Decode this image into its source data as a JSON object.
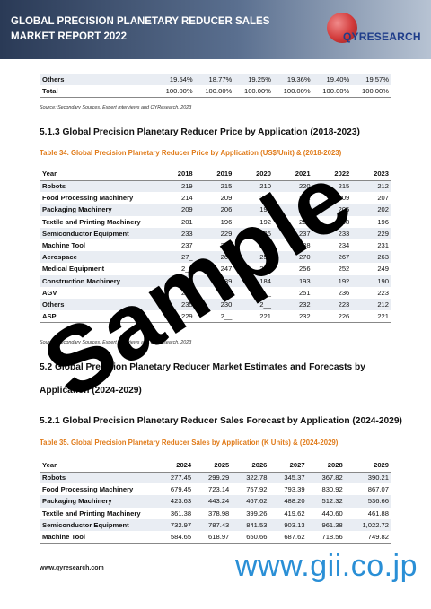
{
  "header": {
    "title": "GLOBAL PRECISION PLANETARY REDUCER SALES MARKET REPORT 2022",
    "logo_text": "QYRESEARCH"
  },
  "top_table": {
    "rows": [
      {
        "label": "Others",
        "values": [
          "19.54%",
          "18.77%",
          "19.25%",
          "19.36%",
          "19.40%",
          "19.57%"
        ]
      },
      {
        "label": "Total",
        "values": [
          "100.00%",
          "100.00%",
          "100.00%",
          "100.00%",
          "100.00%",
          "100.00%"
        ]
      }
    ]
  },
  "source_text": "Source: Secondary Sources, Expert Interviews and QYResearch, 2023",
  "section_513": "5.1.3  Global Precision Planetary Reducer Price by Application (2018-2023)",
  "table34": {
    "caption": "Table 34.   Global Precision Planetary Reducer Price by Application (US$/Unit) & (2018-2023)",
    "header_label": "Year",
    "years": [
      "2018",
      "2019",
      "2020",
      "2021",
      "2022",
      "2023"
    ],
    "rows": [
      {
        "label": "Robots",
        "values": [
          "219",
          "215",
          "210",
          "220",
          "215",
          "212"
        ]
      },
      {
        "label": "Food Processing Machinery",
        "values": [
          "214",
          "209",
          "201",
          "212",
          "209",
          "207"
        ]
      },
      {
        "label": "Packaging Machinery",
        "values": [
          "209",
          "206",
          "199",
          "208",
          "205",
          "202"
        ]
      },
      {
        "label": "Textile and Printing Machinery",
        "values": [
          "201",
          "196",
          "192",
          "201",
          "198",
          "196"
        ]
      },
      {
        "label": "Semiconductor Equipment",
        "values": [
          "233",
          "229",
          "226",
          "237",
          "233",
          "229"
        ]
      },
      {
        "label": "Machine Tool",
        "values": [
          "237",
          "232",
          "226",
          "238",
          "234",
          "231"
        ]
      },
      {
        "label": "Aerospace",
        "values": [
          "27_",
          "260",
          "257",
          "270",
          "267",
          "263"
        ]
      },
      {
        "label": "Medical Equipment",
        "values": [
          "2__",
          "247",
          "244",
          "256",
          "252",
          "249"
        ]
      },
      {
        "label": "Construction Machinery",
        "values": [
          "194",
          "189",
          "184",
          "193",
          "192",
          "190"
        ]
      },
      {
        "label": "AGV",
        "values": [
          "255",
          "250",
          "2__",
          "251",
          "236",
          "223"
        ]
      },
      {
        "label": "Others",
        "values": [
          "235",
          "230",
          "2__",
          "232",
          "223",
          "212"
        ]
      },
      {
        "label": "ASP",
        "values": [
          "229",
          "2__",
          "221",
          "232",
          "226",
          "221"
        ]
      }
    ]
  },
  "section_52_line1": "5.2  Global Precision Planetary Reducer Market Estimates and Forecasts by",
  "section_52_line2": "Application (2024-2029)",
  "section_521": "5.2.1  Global Precision Planetary Reducer Sales Forecast by Application (2024-2029)",
  "table35": {
    "caption": "Table 35.   Global Precision Planetary Reducer Sales by Application (K Units) & (2024-2029)",
    "header_label": "Year",
    "years": [
      "2024",
      "2025",
      "2026",
      "2027",
      "2028",
      "2029"
    ],
    "rows": [
      {
        "label": "Robots",
        "values": [
          "277.45",
          "299.29",
          "322.78",
          "345.37",
          "367.82",
          "390.21"
        ]
      },
      {
        "label": "Food Processing Machinery",
        "values": [
          "679.45",
          "723.14",
          "757.92",
          "793.39",
          "830.92",
          "867.07"
        ]
      },
      {
        "label": "Packaging Machinery",
        "values": [
          "423.63",
          "443.24",
          "467.62",
          "488.20",
          "512.32",
          "536.66"
        ]
      },
      {
        "label": "Textile and Printing Machinery",
        "values": [
          "361.38",
          "378.98",
          "399.26",
          "419.62",
          "440.60",
          "461.88"
        ]
      },
      {
        "label": "Semiconductor Equipment",
        "values": [
          "732.97",
          "787.43",
          "841.53",
          "903.13",
          "961.38",
          "1,022.72"
        ]
      },
      {
        "label": "Machine Tool",
        "values": [
          "584.65",
          "618.97",
          "650.66",
          "687.62",
          "718.56",
          "749.82"
        ]
      }
    ]
  },
  "watermark": "Sample",
  "footer": {
    "url": "www.qyresearch.com",
    "gii": "www.gii.co.jp"
  }
}
